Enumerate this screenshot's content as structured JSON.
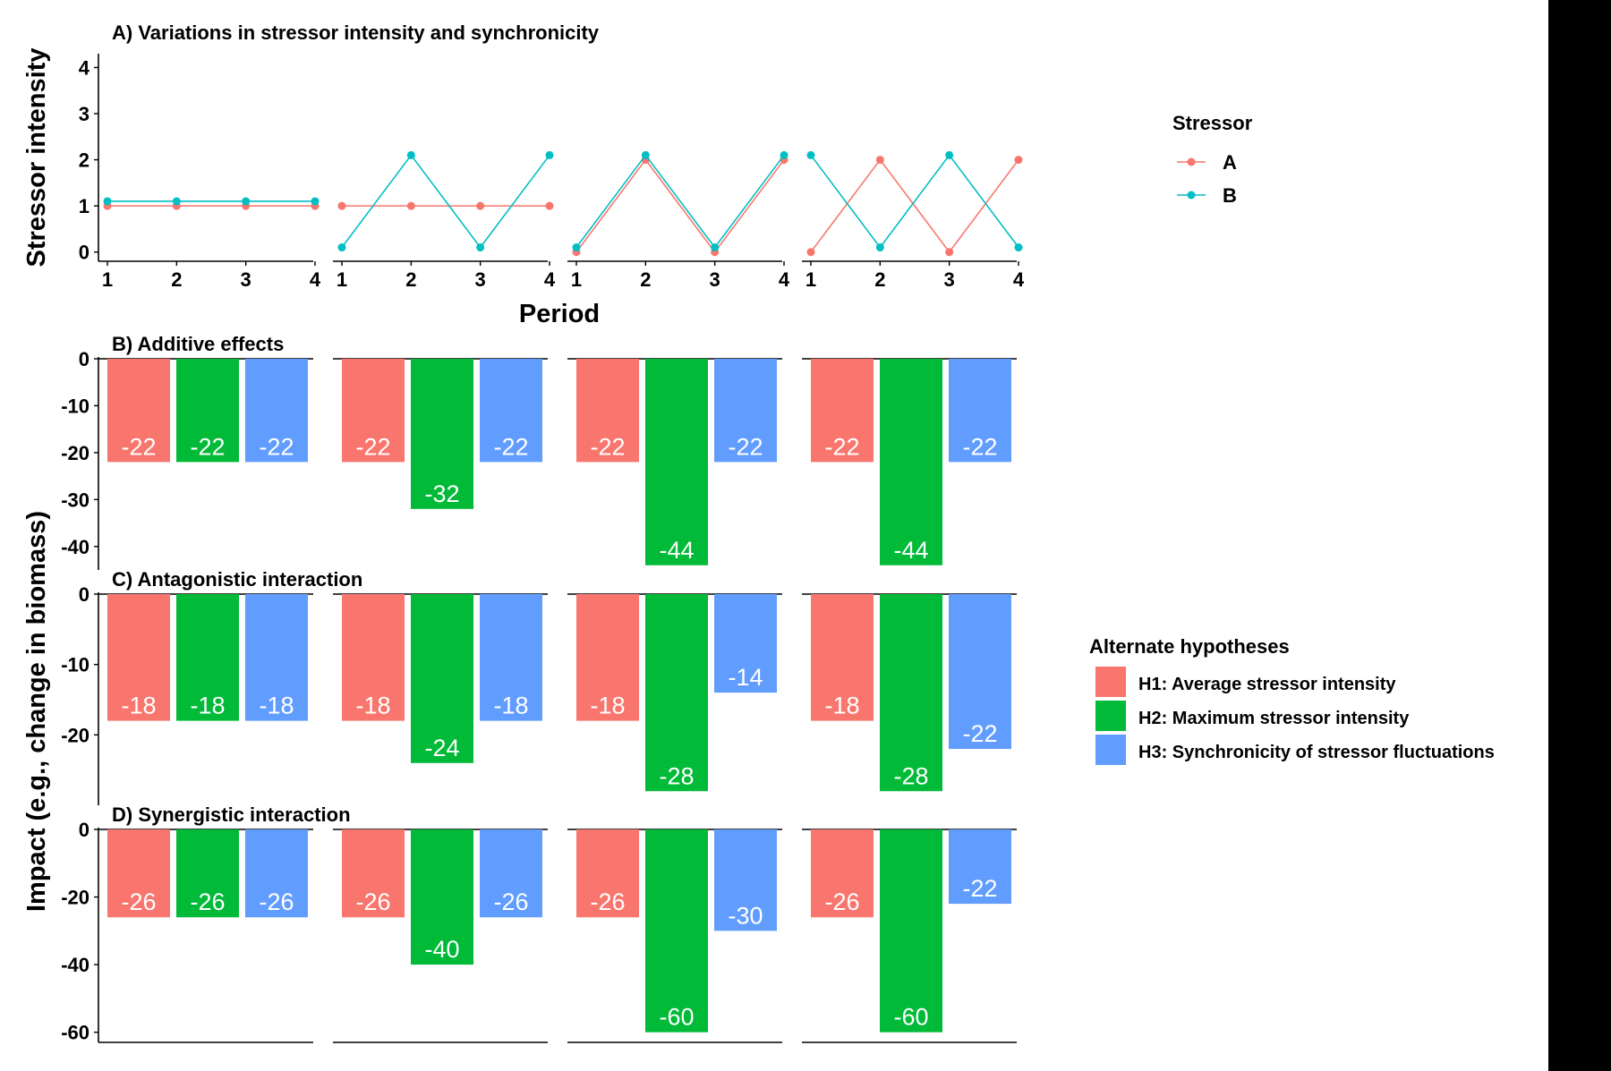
{
  "chart_data": {
    "type": "line+bar",
    "panel_titles": [
      "A) Variations in stressor intensity and synchronicity",
      "B) Additive effects",
      "C) Antagonistic interaction",
      "D) Synergistic interaction"
    ],
    "y_label_top": "Stressor intensity",
    "x_label_top": "Period",
    "y_label_bottom": "Impact (e.g., change in biomass)",
    "line_panel": {
      "x": [
        "1",
        "2",
        "3",
        "4"
      ],
      "y_ticks": [
        "0",
        "1",
        "2",
        "3",
        "4"
      ],
      "ylim": [
        -0.2,
        4.3
      ],
      "facets": [
        {
          "A": [
            1,
            1,
            1,
            1
          ],
          "B": [
            1.1,
            1.1,
            1.1,
            1.1
          ]
        },
        {
          "A": [
            1,
            1,
            1,
            1
          ],
          "B": [
            0.1,
            2.1,
            0.1,
            2.1
          ]
        },
        {
          "A": [
            0,
            2,
            0,
            2
          ],
          "B": [
            0.1,
            2.1,
            0.1,
            2.1
          ]
        },
        {
          "A": [
            0,
            2,
            0,
            2
          ],
          "B": [
            2.1,
            0.1,
            2.1,
            0.1
          ]
        }
      ]
    },
    "bar_panels": [
      {
        "y_ticks": [
          "0",
          "-10",
          "-20",
          "-30",
          "-40"
        ],
        "ylim": [
          -45,
          0
        ],
        "facets": [
          [
            -22,
            -22,
            -22
          ],
          [
            -22,
            -32,
            -22
          ],
          [
            -22,
            -44,
            -22
          ],
          [
            -22,
            -44,
            -22
          ]
        ],
        "labels": [
          [
            "-22",
            "-22",
            "-22"
          ],
          [
            "-22",
            "-32",
            "-22"
          ],
          [
            "-22",
            "-44",
            "-22"
          ],
          [
            "-22",
            "-44",
            "-22"
          ]
        ]
      },
      {
        "y_ticks": [
          "0",
          "-10",
          "-20"
        ],
        "ylim": [
          -30,
          0
        ],
        "facets": [
          [
            -18,
            -18,
            -18
          ],
          [
            -18,
            -24,
            -18
          ],
          [
            -18,
            -28,
            -14
          ],
          [
            -18,
            -28,
            -22
          ]
        ],
        "labels": [
          [
            "-18",
            "-18",
            "-18"
          ],
          [
            "-18",
            "-24",
            "-18"
          ],
          [
            "-18",
            "-28",
            "-14"
          ],
          [
            "-18",
            "-28",
            "-22"
          ]
        ]
      },
      {
        "y_ticks": [
          "0",
          "-20",
          "-40",
          "-60"
        ],
        "ylim": [
          -63,
          0
        ],
        "facets": [
          [
            -26,
            -26,
            -26
          ],
          [
            -26,
            -40,
            -26
          ],
          [
            -26,
            -60,
            -30
          ],
          [
            -26,
            -60,
            -22
          ]
        ],
        "labels": [
          [
            "-26",
            "-26",
            "-26"
          ],
          [
            "-26",
            "-40",
            "-26"
          ],
          [
            "-26",
            "-60",
            "-30"
          ],
          [
            "-26",
            "-60",
            "-22"
          ]
        ]
      }
    ],
    "legend_stressor": {
      "title": "Stressor",
      "items": [
        {
          "label": "A",
          "color": "#F8766D"
        },
        {
          "label": "B",
          "color": "#00BFC4"
        }
      ]
    },
    "legend_hypotheses": {
      "title": "Alternate hypotheses",
      "items": [
        {
          "label": "H1: Average stressor intensity",
          "color": "#F8766D"
        },
        {
          "label": "H2: Maximum stressor intensity",
          "color": "#00BA38"
        },
        {
          "label": "H3: Synchronicity of stressor fluctuations",
          "color": "#619CFF"
        }
      ]
    }
  }
}
